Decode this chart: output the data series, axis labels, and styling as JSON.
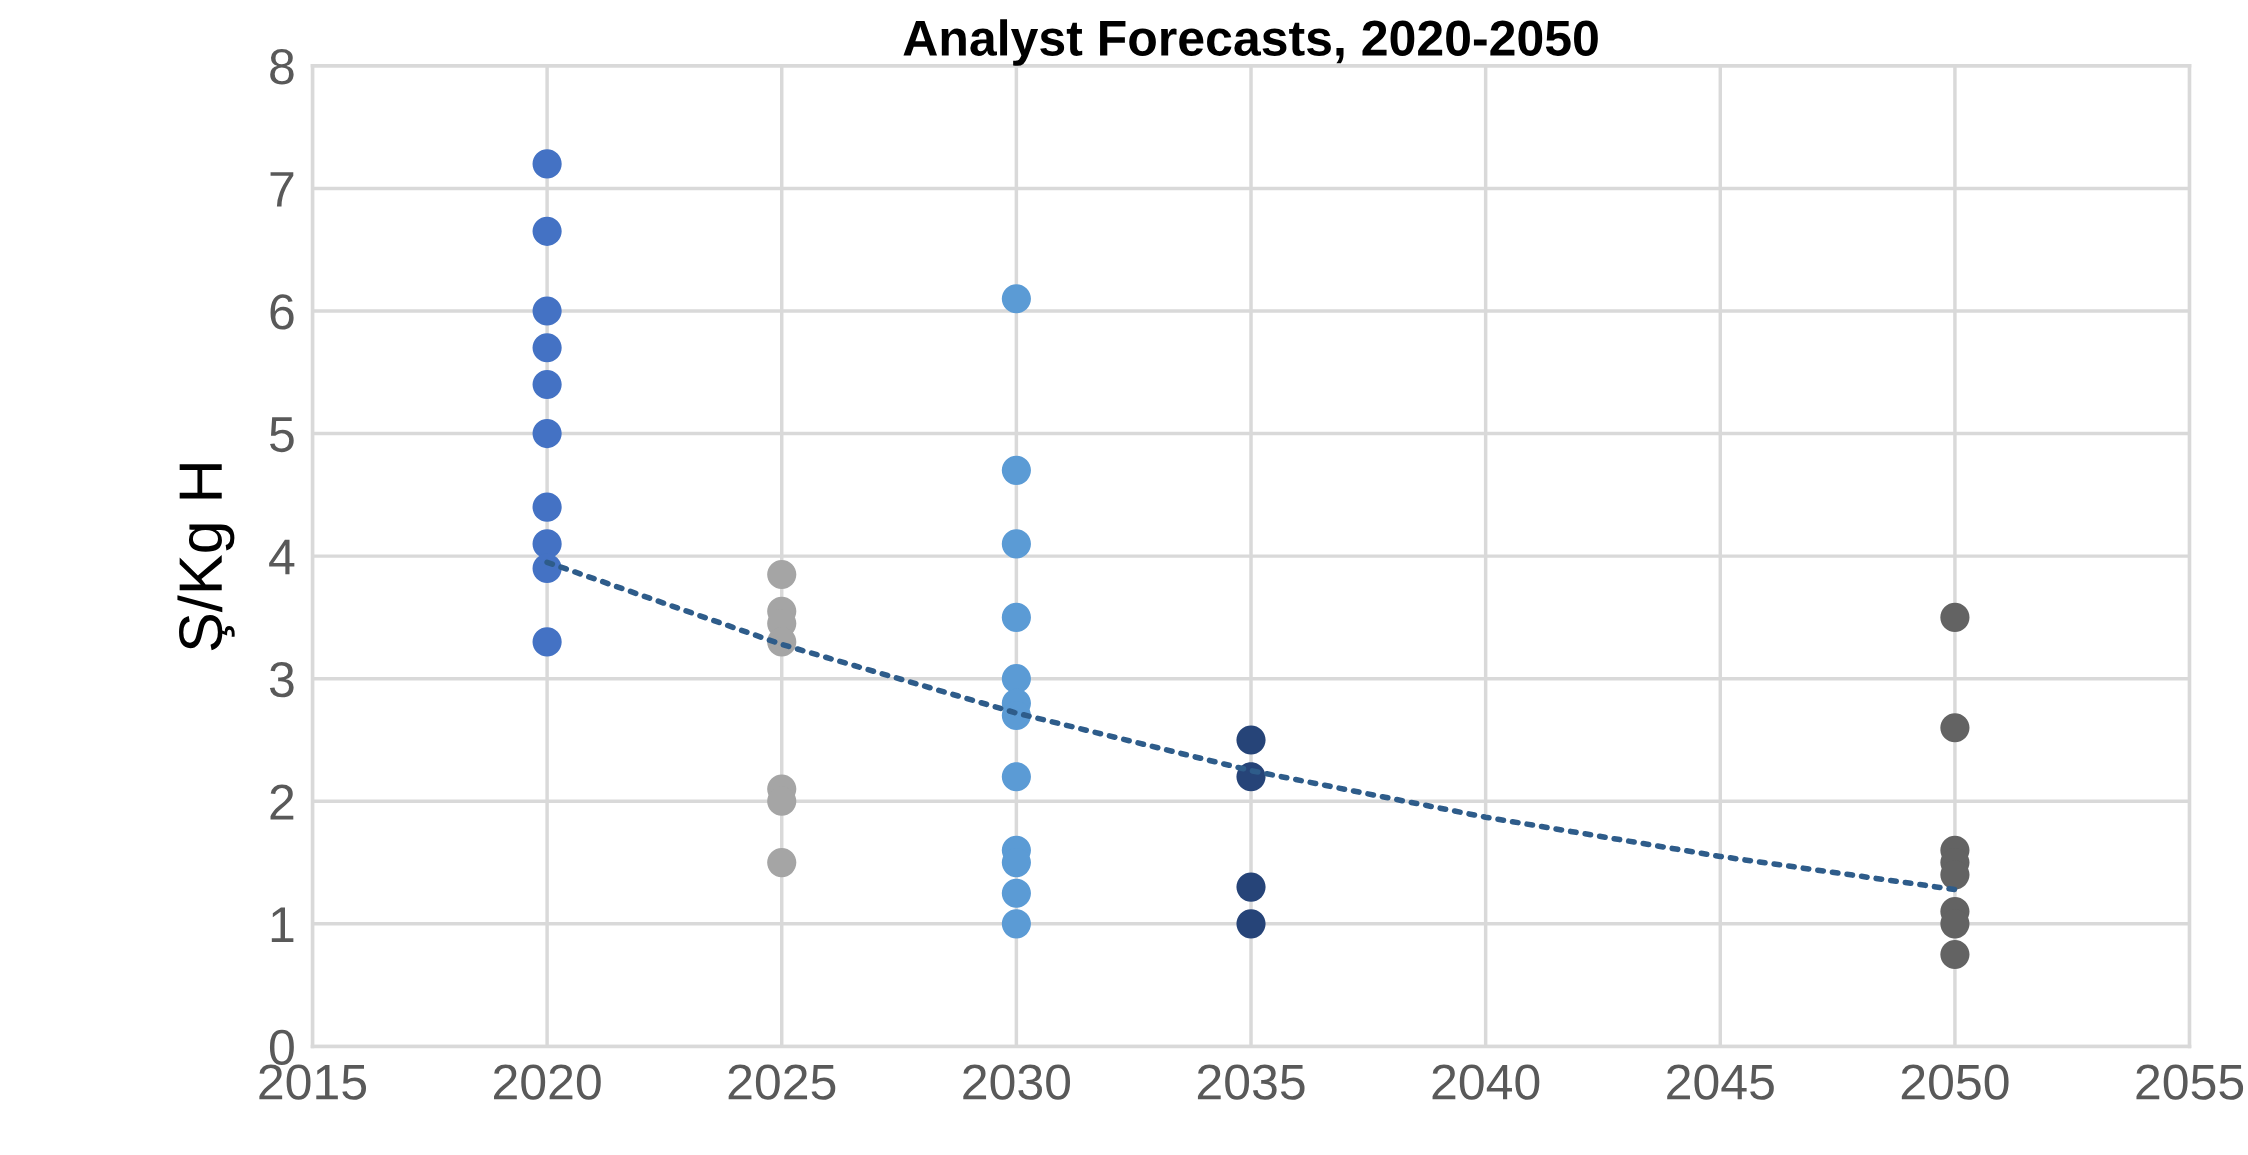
{
  "chart_data": {
    "type": "scatter",
    "title": "Analyst Forecasts, 2020-2050",
    "ylabel": "Ş/Kg H",
    "series": [
      {
        "color": "#4472c4",
        "x": [
          2020,
          2020,
          2020,
          2020,
          2020,
          2020,
          2020,
          2020,
          2020,
          2020
        ],
        "values": [
          7.2,
          6.65,
          6.0,
          5.7,
          5.4,
          5.0,
          4.4,
          4.1,
          3.9,
          3.3
        ]
      },
      {
        "color": "#a5a5a5",
        "x": [
          2025,
          2025,
          2025,
          2025,
          2025,
          2025,
          2025
        ],
        "values": [
          3.85,
          3.55,
          3.45,
          3.3,
          2.1,
          2.0,
          1.5
        ]
      },
      {
        "color": "#5b9bd5",
        "x": [
          2030,
          2030,
          2030,
          2030,
          2030,
          2030,
          2030,
          2030,
          2030,
          2030,
          2030,
          2030
        ],
        "values": [
          6.1,
          4.7,
          4.1,
          3.5,
          3.0,
          2.8,
          2.7,
          2.2,
          1.6,
          1.5,
          1.25,
          1.0
        ]
      },
      {
        "color": "#264478",
        "x": [
          2035,
          2035,
          2035,
          2035
        ],
        "values": [
          2.5,
          2.2,
          1.3,
          1.0
        ]
      },
      {
        "color": "#636363",
        "x": [
          2050,
          2050,
          2050,
          2050,
          2050,
          2050,
          2050,
          2050
        ],
        "values": [
          3.5,
          2.6,
          1.6,
          1.5,
          1.4,
          1.1,
          1.0,
          0.75
        ]
      },
      {
        "type": "line",
        "marker": "none",
        "line_style": "dotted",
        "color": "#2e5c8a",
        "x": [
          2020,
          2025,
          2030,
          2035,
          2040,
          2045,
          2050
        ],
        "values": [
          3.95,
          3.28,
          2.72,
          2.25,
          1.87,
          1.55,
          1.28
        ]
      }
    ],
    "marker": "circle",
    "xlim": [
      2015,
      2055
    ],
    "xticks": [
      2015,
      2020,
      2025,
      2030,
      2035,
      2040,
      2045,
      2050,
      2055
    ],
    "ylim": [
      0,
      8
    ],
    "yticks": [
      0,
      1,
      2,
      3,
      4,
      5,
      6,
      7,
      8
    ],
    "grid": true,
    "legend": false
  }
}
